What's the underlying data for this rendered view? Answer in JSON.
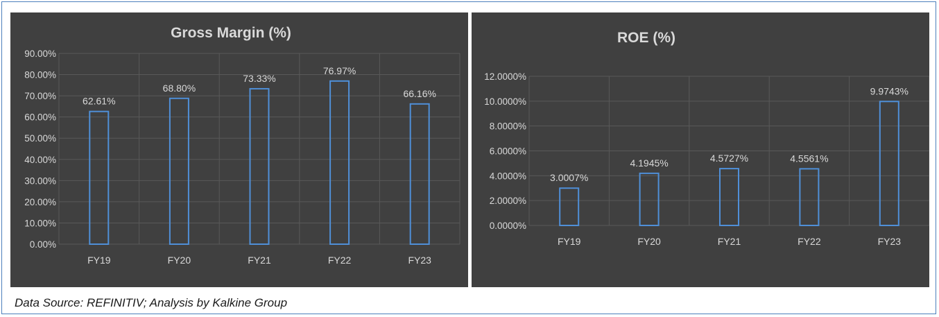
{
  "source_note": "Data Source: REFINITIV; Analysis by Kalkine Group",
  "colors": {
    "background": "#404040",
    "bar_stroke": "#4f8fd8",
    "grid": "#595959",
    "text": "#d9d9d9"
  },
  "chart_data": [
    {
      "type": "bar",
      "title": "Gross Margin (%)",
      "categories": [
        "FY19",
        "FY20",
        "FY21",
        "FY22",
        "FY23"
      ],
      "values": [
        62.61,
        68.8,
        73.33,
        76.97,
        66.16
      ],
      "value_labels": [
        "62.61%",
        "68.80%",
        "73.33%",
        "76.97%",
        "66.16%"
      ],
      "ylim": [
        0,
        90
      ],
      "yticks": [
        0,
        10,
        20,
        30,
        40,
        50,
        60,
        70,
        80,
        90
      ],
      "ytick_labels": [
        "0.00%",
        "10.00%",
        "20.00%",
        "30.00%",
        "40.00%",
        "50.00%",
        "60.00%",
        "70.00%",
        "80.00%",
        "90.00%"
      ],
      "grid": true,
      "xlabel": "",
      "ylabel": ""
    },
    {
      "type": "bar",
      "title": "ROE (%)",
      "categories": [
        "FY19",
        "FY20",
        "FY21",
        "FY22",
        "FY23"
      ],
      "values": [
        3.0007,
        4.1945,
        4.5727,
        4.5561,
        9.9743
      ],
      "value_labels": [
        "3.0007%",
        "4.1945%",
        "4.5727%",
        "4.5561%",
        "9.9743%"
      ],
      "ylim": [
        0,
        12
      ],
      "yticks": [
        0,
        2,
        4,
        6,
        8,
        10,
        12
      ],
      "ytick_labels": [
        "0.0000%",
        "2.0000%",
        "4.0000%",
        "6.0000%",
        "8.0000%",
        "10.0000%",
        "12.0000%"
      ],
      "grid": true,
      "xlabel": "",
      "ylabel": ""
    }
  ]
}
